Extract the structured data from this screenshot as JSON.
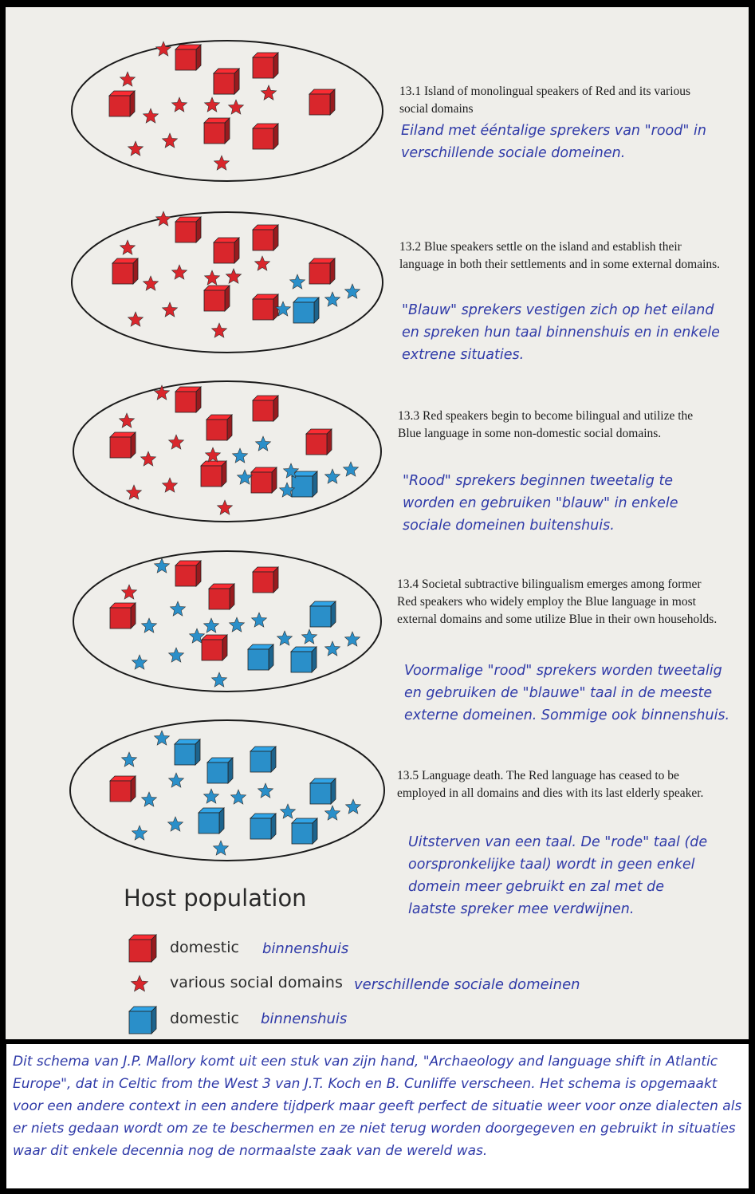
{
  "stages": [
    {
      "caption": "13.1 Island of monolingual speakers of Red and its various social domains",
      "translation": "Eiland met ééntalige sprekers van \"rood\" in verschillende sociale domeinen.",
      "population": {
        "red_domestic": 8,
        "red_social": 11,
        "blue_domestic": 0,
        "blue_social": 0
      }
    },
    {
      "caption": "13.2 Blue speakers settle on the island and establish their language in both their settlements and in some external domains.",
      "translation": "\"Blauw\" sprekers vestigen zich op het eiland en spreken hun taal binnenshuis en in enkele extrene situaties.",
      "population": {
        "red_domestic": 7,
        "red_social": 11,
        "blue_domestic": 1,
        "blue_social": 4
      }
    },
    {
      "caption": "13.3 Red speakers begin to become bilingual and utilize the Blue language in some non-domestic social domains.",
      "translation": "\"Rood\" sprekers beginnen tweetalig te worden en gebruiken \"blauw\" in enkele sociale domeinen buitenshuis.",
      "population": {
        "red_domestic": 7,
        "red_social": 8,
        "blue_domestic": 1,
        "blue_social": 7
      }
    },
    {
      "caption": "13.4 Societal subtractive bilingualism emerges among former Red speakers who widely employ the Blue language in most external domains and some utilize Blue in their own households.",
      "translation": "Voormalige \"rood\" sprekers worden tweetalig en gebruiken de \"blauwe\" taal in de meeste externe domeinen. Sommige ook binnenshuis.",
      "population": {
        "red_domestic": 5,
        "red_social": 1,
        "blue_domestic": 3,
        "blue_social": 14
      }
    },
    {
      "caption": "13.5 Language death. The Red language has ceased to be employed in all domains and dies with its last elderly speaker.",
      "translation": "Uitsterven van een taal. De \"rode\" taal (de oorspronkelijke taal) wordt in geen enkel domein meer gebruikt en zal met de laatste spreker mee verdwijnen.",
      "population": {
        "red_domestic": 1,
        "red_social": 0,
        "blue_domestic": 7,
        "blue_social": 13
      }
    }
  ],
  "legend": {
    "title": "Host population",
    "items": [
      {
        "label": "domestic",
        "translation": "binnenshuis",
        "symbol": "red-cube-icon",
        "color": "#d9262c"
      },
      {
        "label": "various social domains",
        "translation": "verschillende sociale domeinen",
        "symbol": "red-star-icon",
        "color": "#d9262c"
      },
      {
        "label": "domestic",
        "translation": "binnenshuis",
        "symbol": "blue-cube-icon",
        "color": "#2a8fc9"
      }
    ]
  },
  "note": "Dit schema van J.P. Mallory komt uit een stuk van zijn hand, \"Archaeology and language shift in Atlantic Europe\", dat in Celtic from the West 3 van J.T. Koch en B. Cunliffe verscheen. Het schema is opgemaakt voor een andere context in een andere tijdperk maar geeft perfect de situatie weer voor onze dialecten als er niets gedaan wordt om ze te beschermen en ze niet terug worden doorgegeven en gebruikt in situaties waar dit enkele decennia nog de normaalste zaak van de wereld was.",
  "colors": {
    "red": "#d9262c",
    "blue": "#2a8fc9",
    "caption_translation": "#2f3aa8",
    "background": "#efeeea"
  }
}
